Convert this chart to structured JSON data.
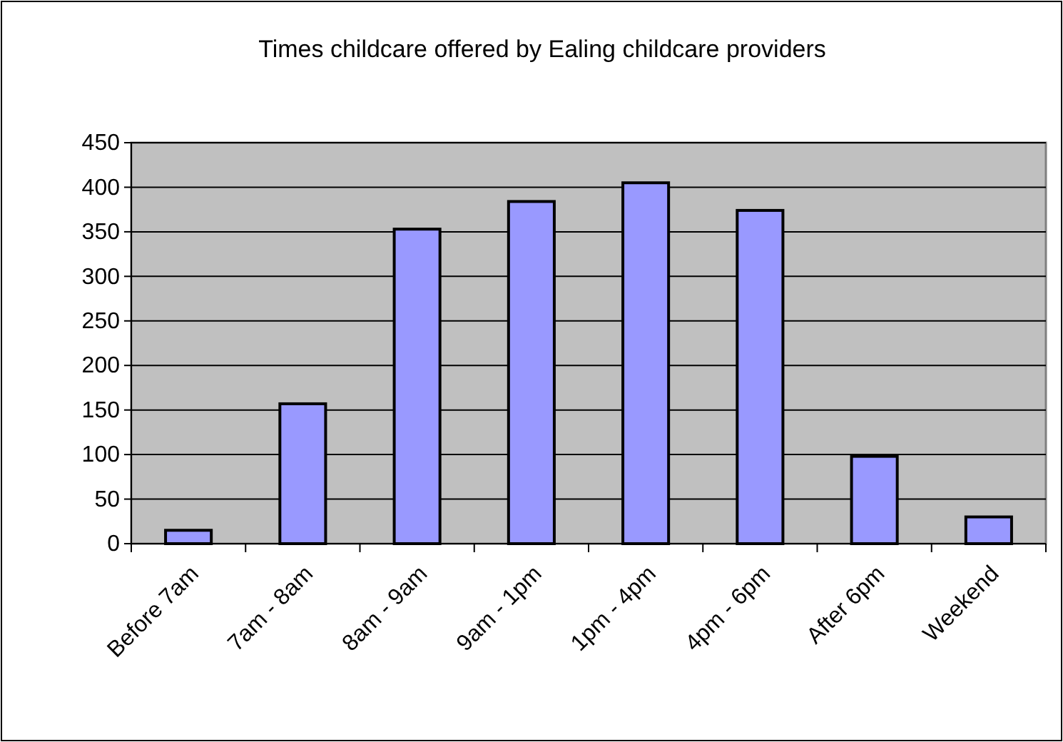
{
  "chart_data": {
    "type": "bar",
    "title": "Times childcare offered by Ealing childcare providers",
    "categories": [
      "Before 7am",
      "7am - 8am",
      "8am - 9am",
      "9am - 1pm",
      "1pm - 4pm",
      "4pm - 6pm",
      "After 6pm",
      "Weekend"
    ],
    "values": [
      15,
      157,
      353,
      384,
      405,
      374,
      98,
      30
    ],
    "color": "#9999ff",
    "ylim": [
      0,
      450
    ],
    "yticks": [
      0,
      50,
      100,
      150,
      200,
      250,
      300,
      350,
      400,
      450
    ],
    "grid": "y"
  }
}
